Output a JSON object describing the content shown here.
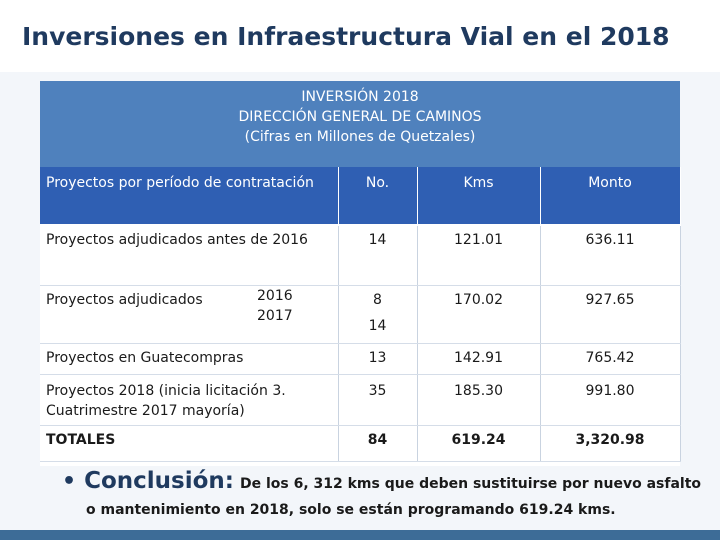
{
  "page": {
    "title": "Inversiones en Infraestructura Vial en el 2018"
  },
  "banner": {
    "line1": "INVERSIÓN 2018",
    "line2": "DIRECCIÓN GENERAL DE CAMINOS",
    "line3": "(Cifras en Millones de Quetzales)"
  },
  "table": {
    "headers": [
      "Proyectos por período de contratación",
      "No.",
      "Kms",
      "Monto"
    ],
    "rows": [
      {
        "label": "Proyectos adjudicados antes de 2016",
        "no": "14",
        "kms": "121.01",
        "monto": "636.11"
      },
      {
        "label": "Proyectos adjudicados",
        "years": [
          "2016",
          "2017"
        ],
        "no": [
          "8",
          "14"
        ],
        "kms": "170.02",
        "monto": "927.65"
      },
      {
        "label": "Proyectos en Guatecompras",
        "no": "13",
        "kms": "142.91",
        "monto": "765.42"
      },
      {
        "label": "Proyectos 2018 (inicia licitación 3. Cuatrimestre 2017 mayoría)",
        "no": "35",
        "kms": "185.30",
        "monto": "991.80"
      },
      {
        "label": "TOTALES",
        "no": "84",
        "kms": "619.24",
        "monto": "3,320.98"
      }
    ]
  },
  "conclusion": {
    "bullet": "•",
    "lead": "Conclusión:",
    "text1": "De los 6, 312 kms que deben sustituirse por nuevo asfalto",
    "text2": "o mantenimiento en 2018, solo se están programando 619.24 kms."
  },
  "colors": {
    "banner": "#4f81bd",
    "header_row": "#2f5fb3",
    "title": "#1f3a5f"
  }
}
